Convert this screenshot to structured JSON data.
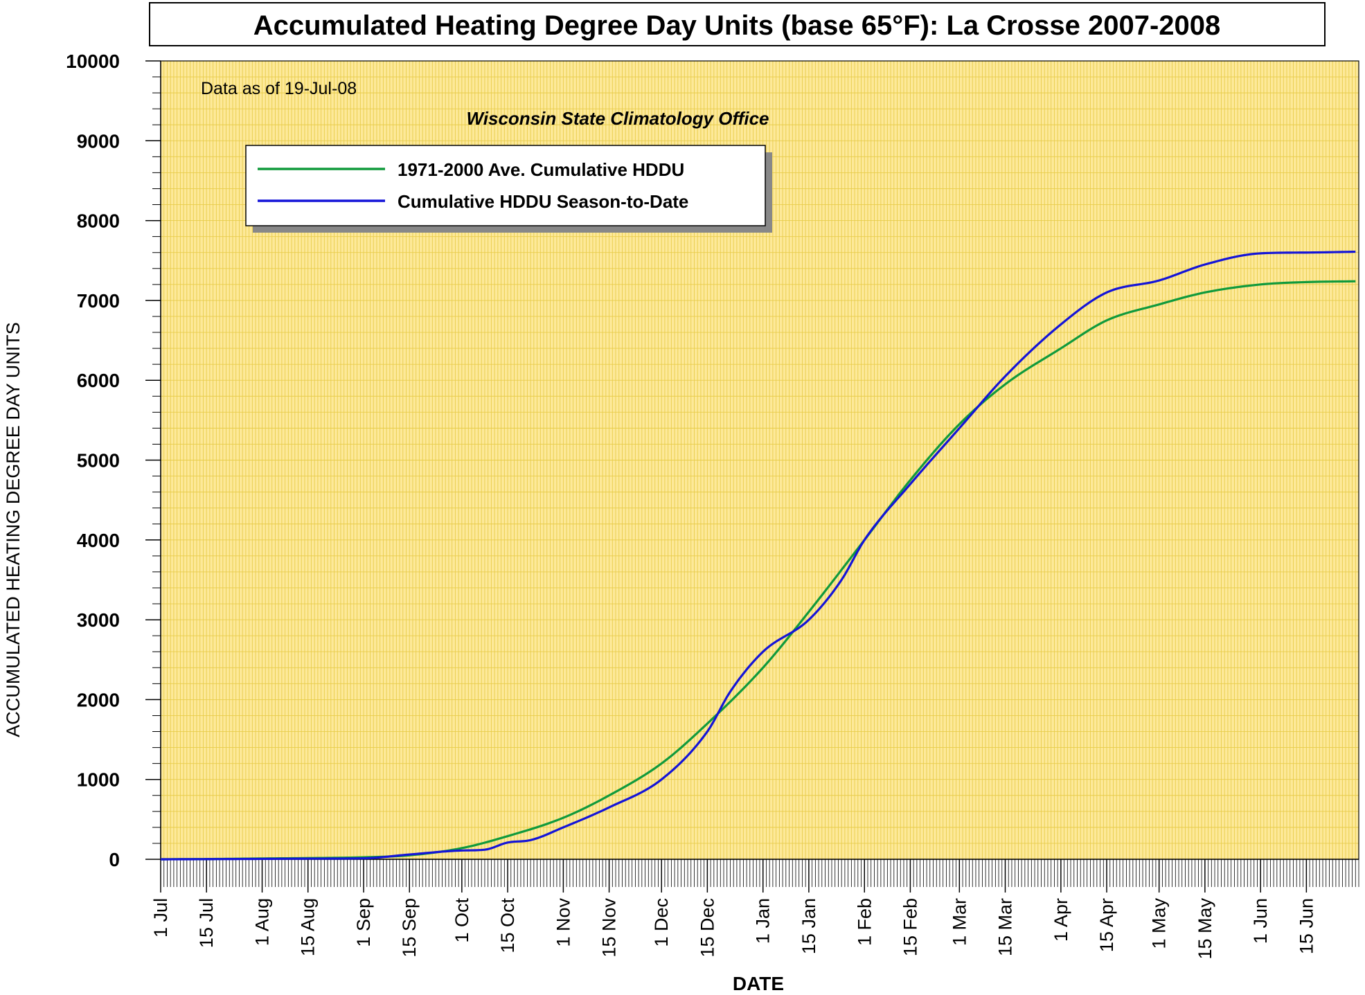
{
  "title": "Accumulated Heating Degree Day Units (base 65°F): La Crosse 2007-2008",
  "note": "Data as of 19-Jul-08",
  "source": "Wisconsin State Climatology Office",
  "colors": {
    "plot_background": "#fde999",
    "grid": "#e8cc4a",
    "average_line": "#109a3c",
    "season_line": "#1414d8"
  },
  "chart_data": {
    "type": "line",
    "title": "Accumulated Heating Degree Day Units (base 65°F): La Crosse 2007-2008",
    "xlabel": "DATE",
    "ylabel": "ACCUMULATED HEATING DEGREE DAY UNITS",
    "x_range": [
      "2007-07-01",
      "2008-06-30"
    ],
    "ylim": [
      0,
      10000
    ],
    "yticks": [
      0,
      1000,
      2000,
      3000,
      4000,
      5000,
      6000,
      7000,
      8000,
      9000,
      10000
    ],
    "y_minor_step": 200,
    "grid": true,
    "legend_position": "upper-left",
    "xticks": [
      {
        "date": "2007-07-01",
        "label": "1 Jul"
      },
      {
        "date": "2007-07-15",
        "label": "15 Jul"
      },
      {
        "date": "2007-08-01",
        "label": "1 Aug"
      },
      {
        "date": "2007-08-15",
        "label": "15 Aug"
      },
      {
        "date": "2007-09-01",
        "label": "1 Sep"
      },
      {
        "date": "2007-09-15",
        "label": "15 Sep"
      },
      {
        "date": "2007-10-01",
        "label": "1 Oct"
      },
      {
        "date": "2007-10-15",
        "label": "15 Oct"
      },
      {
        "date": "2007-11-01",
        "label": "1 Nov"
      },
      {
        "date": "2007-11-15",
        "label": "15 Nov"
      },
      {
        "date": "2007-12-01",
        "label": "1 Dec"
      },
      {
        "date": "2007-12-15",
        "label": "15 Dec"
      },
      {
        "date": "2008-01-01",
        "label": "1 Jan"
      },
      {
        "date": "2008-01-15",
        "label": "15 Jan"
      },
      {
        "date": "2008-02-01",
        "label": "1 Feb"
      },
      {
        "date": "2008-02-15",
        "label": "15 Feb"
      },
      {
        "date": "2008-03-01",
        "label": "1 Mar"
      },
      {
        "date": "2008-03-15",
        "label": "15 Mar"
      },
      {
        "date": "2008-04-01",
        "label": "1 Apr"
      },
      {
        "date": "2008-04-15",
        "label": "15 Apr"
      },
      {
        "date": "2008-05-01",
        "label": "1 May"
      },
      {
        "date": "2008-05-15",
        "label": "15 May"
      },
      {
        "date": "2008-06-01",
        "label": "1 Jun"
      },
      {
        "date": "2008-06-15",
        "label": "15 Jun"
      }
    ],
    "series": [
      {
        "name": "1971-2000 Ave. Cumulative HDDU",
        "points": [
          [
            "2007-07-01",
            0
          ],
          [
            "2007-07-15",
            3
          ],
          [
            "2007-08-01",
            10
          ],
          [
            "2007-08-15",
            15
          ],
          [
            "2007-09-01",
            25
          ],
          [
            "2007-09-15",
            50
          ],
          [
            "2007-10-01",
            140
          ],
          [
            "2007-10-15",
            290
          ],
          [
            "2007-11-01",
            520
          ],
          [
            "2007-11-15",
            800
          ],
          [
            "2007-12-01",
            1200
          ],
          [
            "2007-12-15",
            1700
          ],
          [
            "2008-01-01",
            2400
          ],
          [
            "2008-01-15",
            3100
          ],
          [
            "2008-02-01",
            4000
          ],
          [
            "2008-02-15",
            4750
          ],
          [
            "2008-03-01",
            5450
          ],
          [
            "2008-03-15",
            5950
          ],
          [
            "2008-04-01",
            6400
          ],
          [
            "2008-04-15",
            6750
          ],
          [
            "2008-05-01",
            6950
          ],
          [
            "2008-05-15",
            7100
          ],
          [
            "2008-06-01",
            7200
          ],
          [
            "2008-06-15",
            7230
          ],
          [
            "2008-06-30",
            7240
          ]
        ]
      },
      {
        "name": "Cumulative HDDU Season-to-Date",
        "points": [
          [
            "2007-07-01",
            0
          ],
          [
            "2007-07-15",
            2
          ],
          [
            "2007-08-01",
            5
          ],
          [
            "2007-08-15",
            8
          ],
          [
            "2007-09-01",
            12
          ],
          [
            "2007-09-15",
            60
          ],
          [
            "2007-10-01",
            110
          ],
          [
            "2007-10-08",
            120
          ],
          [
            "2007-10-15",
            210
          ],
          [
            "2007-10-22",
            240
          ],
          [
            "2007-11-01",
            400
          ],
          [
            "2007-11-15",
            650
          ],
          [
            "2007-12-01",
            1000
          ],
          [
            "2007-12-15",
            1600
          ],
          [
            "2007-12-22",
            2100
          ],
          [
            "2008-01-01",
            2600
          ],
          [
            "2008-01-15",
            3000
          ],
          [
            "2008-01-25",
            3500
          ],
          [
            "2008-02-01",
            4000
          ],
          [
            "2008-02-15",
            4700
          ],
          [
            "2008-03-01",
            5400
          ],
          [
            "2008-03-15",
            6050
          ],
          [
            "2008-04-01",
            6700
          ],
          [
            "2008-04-15",
            7100
          ],
          [
            "2008-05-01",
            7250
          ],
          [
            "2008-05-15",
            7450
          ],
          [
            "2008-06-01",
            7590
          ],
          [
            "2008-06-15",
            7600
          ],
          [
            "2008-06-30",
            7610
          ]
        ]
      }
    ]
  }
}
